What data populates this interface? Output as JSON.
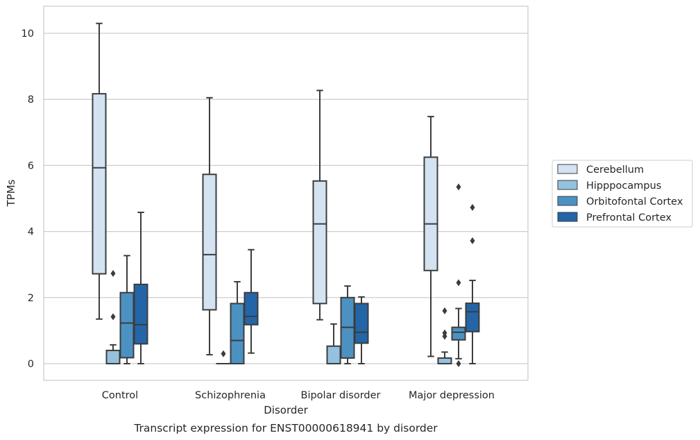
{
  "chart_data": {
    "type": "boxplot",
    "caption": "Transcript expression for ENST00000618941 by disorder",
    "xlabel": "Disorder",
    "ylabel": "TPMs",
    "ylim": [
      -0.5,
      10.8
    ],
    "yticks": [
      0,
      2,
      4,
      6,
      8,
      10
    ],
    "grid": "horizontal",
    "legend_position": "right",
    "categories": [
      "Control",
      "Schizophrenia",
      "Bipolar disorder",
      "Major depression"
    ],
    "series": [
      {
        "name": "Cerebellum",
        "color": "#d3e3f2",
        "boxes": [
          {
            "whislo": 1.35,
            "q1": 2.72,
            "med": 5.93,
            "q3": 8.17,
            "whishi": 10.3,
            "fliers": []
          },
          {
            "whislo": 0.27,
            "q1": 1.63,
            "med": 3.3,
            "q3": 5.73,
            "whishi": 8.05,
            "fliers": []
          },
          {
            "whislo": 1.33,
            "q1": 1.82,
            "med": 4.23,
            "q3": 5.53,
            "whishi": 8.27,
            "fliers": []
          },
          {
            "whislo": 0.22,
            "q1": 2.82,
            "med": 4.23,
            "q3": 6.25,
            "whishi": 7.48,
            "fliers": []
          }
        ]
      },
      {
        "name": "Hipppocampus",
        "color": "#94c1de",
        "boxes": [
          {
            "whislo": 0.0,
            "q1": 0.0,
            "med": 0.0,
            "q3": 0.4,
            "whishi": 0.57,
            "fliers": [
              1.42,
              2.73
            ]
          },
          {
            "whislo": 0.0,
            "q1": 0.0,
            "med": 0.0,
            "q3": 0.0,
            "whishi": 0.0,
            "fliers": [
              0.3
            ]
          },
          {
            "whislo": 0.0,
            "q1": 0.0,
            "med": 0.0,
            "q3": 0.53,
            "whishi": 1.2,
            "fliers": []
          },
          {
            "whislo": 0.0,
            "q1": 0.0,
            "med": 0.0,
            "q3": 0.17,
            "whishi": 0.35,
            "fliers": [
              0.83,
              0.93,
              1.6
            ]
          }
        ]
      },
      {
        "name": "Orbitofontal Cortex",
        "color": "#4b92c3",
        "boxes": [
          {
            "whislo": 0.0,
            "q1": 0.18,
            "med": 1.23,
            "q3": 2.15,
            "whishi": 3.27,
            "fliers": []
          },
          {
            "whislo": 0.0,
            "q1": 0.0,
            "med": 0.7,
            "q3": 1.82,
            "whishi": 2.48,
            "fliers": []
          },
          {
            "whislo": 0.0,
            "q1": 0.17,
            "med": 1.1,
            "q3": 2.0,
            "whishi": 2.35,
            "fliers": []
          },
          {
            "whislo": 0.15,
            "q1": 0.72,
            "med": 0.95,
            "q3": 1.1,
            "whishi": 1.67,
            "fliers": [
              0.0,
              2.45,
              5.35
            ]
          }
        ]
      },
      {
        "name": "Prefrontal Cortex",
        "color": "#2465a8",
        "boxes": [
          {
            "whislo": 0.0,
            "q1": 0.6,
            "med": 1.18,
            "q3": 2.4,
            "whishi": 4.58,
            "fliers": []
          },
          {
            "whislo": 0.32,
            "q1": 1.18,
            "med": 1.43,
            "q3": 2.15,
            "whishi": 3.45,
            "fliers": []
          },
          {
            "whislo": 0.0,
            "q1": 0.62,
            "med": 0.95,
            "q3": 1.82,
            "whishi": 2.02,
            "fliers": []
          },
          {
            "whislo": 0.0,
            "q1": 0.97,
            "med": 1.57,
            "q3": 1.83,
            "whishi": 2.52,
            "fliers": [
              3.72,
              4.73
            ]
          }
        ]
      }
    ]
  }
}
